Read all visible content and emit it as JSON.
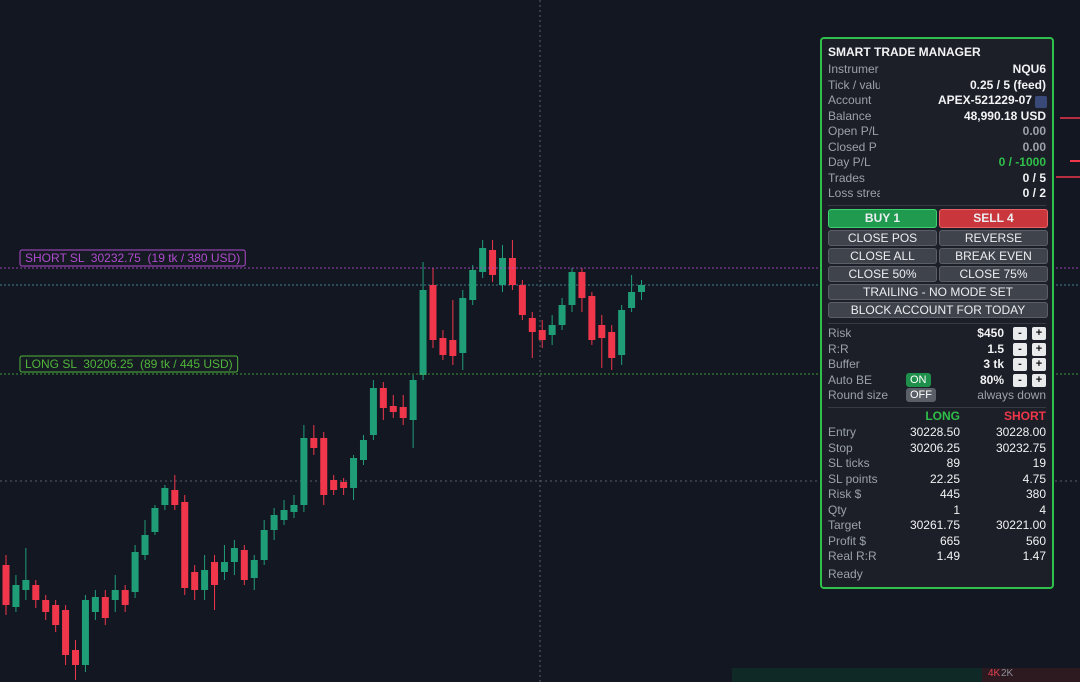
{
  "chart": {
    "type": "candlestick",
    "ylim": [
      30129.25,
      30299.75
    ],
    "up_color": "#1f9d77",
    "down_color": "#f0364b",
    "candles": [
      [
        30158.5,
        30161,
        30146,
        30148.5
      ],
      [
        30148,
        30156,
        30146.75,
        30153.5
      ],
      [
        30152.25,
        30162.75,
        30149.75,
        30154.75
      ],
      [
        30153.5,
        30154.75,
        30147.75,
        30149.75
      ],
      [
        30149.75,
        30151,
        30144.75,
        30146.75
      ],
      [
        30148.5,
        30149.75,
        30141.75,
        30143.5
      ],
      [
        30147.25,
        30148.5,
        30133.5,
        30136
      ],
      [
        30137.25,
        30139.75,
        30129.75,
        30133.5
      ],
      [
        30133.5,
        30151,
        30131.75,
        30149.75
      ],
      [
        30146.75,
        30152.25,
        30144.75,
        30150.5
      ],
      [
        30150.5,
        30152.25,
        30143.5,
        30145.25
      ],
      [
        30149.75,
        30156,
        30146.75,
        30152.25
      ],
      [
        30152.25,
        30153.5,
        30146.75,
        30148.5
      ],
      [
        30151.75,
        30163.5,
        30150.25,
        30161.75
      ],
      [
        30161,
        30169.75,
        30159.75,
        30166
      ],
      [
        30166.75,
        30173.5,
        30166,
        30172.75
      ],
      [
        30173.5,
        30178.5,
        30172.25,
        30177.75
      ],
      [
        30177.25,
        30181,
        30172.25,
        30173.5
      ],
      [
        30174.25,
        30176,
        30151,
        30152.75
      ],
      [
        30156.75,
        30158.5,
        30149.75,
        30152.25
      ],
      [
        30152.25,
        30161,
        30149.75,
        30157.25
      ],
      [
        30159.25,
        30161,
        30147.25,
        30153.5
      ],
      [
        30156.75,
        30163.5,
        30154.75,
        30159.25
      ],
      [
        30159.25,
        30164.75,
        30156,
        30162.75
      ],
      [
        30162.25,
        30163.5,
        30153.5,
        30154.75
      ],
      [
        30155.25,
        30161,
        30152.25,
        30159.75
      ],
      [
        30159.75,
        30169.75,
        30158.5,
        30167.25
      ],
      [
        30167.25,
        30172.75,
        30164.75,
        30171
      ],
      [
        30169.75,
        30174.75,
        30168.5,
        30172.25
      ],
      [
        30171.75,
        30176,
        30170.25,
        30173.5
      ],
      [
        30173.5,
        30193.5,
        30171.75,
        30190.25
      ],
      [
        30190.25,
        30193.5,
        30186,
        30187.75
      ],
      [
        30190.25,
        30191.75,
        30173.5,
        30176
      ],
      [
        30179.75,
        30181,
        30176,
        30177.25
      ],
      [
        30179.25,
        30180.25,
        30176,
        30177.75
      ],
      [
        30177.75,
        30186,
        30174.75,
        30185.25
      ],
      [
        30184.75,
        30191,
        30183.5,
        30189.75
      ],
      [
        30191,
        30204.75,
        30189.75,
        30202.75
      ],
      [
        30202.75,
        30204.25,
        30194.75,
        30197.75
      ],
      [
        30198.25,
        30201,
        30195.25,
        30196.75
      ],
      [
        30198,
        30201,
        30193.5,
        30195.25
      ],
      [
        30194.75,
        30206,
        30187.75,
        30204.75
      ],
      [
        30206,
        30234.25,
        30204.75,
        30227.25
      ],
      [
        30228.5,
        30232.75,
        30212.75,
        30214.75
      ],
      [
        30215.25,
        30217.25,
        30209.75,
        30211
      ],
      [
        30214.75,
        30224.75,
        30208.5,
        30210.75
      ],
      [
        30211.5,
        30227.25,
        30207.25,
        30225.25
      ],
      [
        30224.75,
        30233.5,
        30223.5,
        30232.25
      ],
      [
        30231.75,
        30239.75,
        30230.25,
        30237.75
      ],
      [
        30237.25,
        30239.75,
        30229.25,
        30231
      ],
      [
        30228.5,
        30238.5,
        30226.75,
        30235.25
      ],
      [
        30235.25,
        30239.75,
        30227.25,
        30228.5
      ],
      [
        30228.5,
        30229.75,
        30219.75,
        30221
      ],
      [
        30220.25,
        30221.75,
        30210.25,
        30216.75
      ],
      [
        30217.25,
        30219.75,
        30212.75,
        30214.75
      ],
      [
        30216,
        30221,
        30213.5,
        30218.5
      ],
      [
        30218.5,
        30225.25,
        30217.25,
        30223.5
      ],
      [
        30223.5,
        30232.75,
        30221.75,
        30231.75
      ],
      [
        30231.75,
        30232.75,
        30221.75,
        30225.25
      ],
      [
        30225.75,
        30226.75,
        30213.5,
        30214.75
      ],
      [
        30218.5,
        30221,
        30207.75,
        30215.25
      ],
      [
        30216.75,
        30218.5,
        30207.25,
        30210.25
      ],
      [
        30211,
        30223.5,
        30208.5,
        30222.25
      ],
      [
        30222.75,
        30231,
        30221.75,
        30226.75
      ],
      [
        30226.75,
        30229.75,
        30224.75,
        30228.5
      ]
    ],
    "sl_lines": [
      {
        "label": "SHORT SL  30232.75  (19 tk / 380 USD)",
        "price": 30232.75,
        "color": "#b04ccf"
      },
      {
        "label": "LONG SL  30206.25  (89 tk / 445 USD)",
        "price": 30206.25,
        "color": "#4fb53a"
      }
    ],
    "volume_label": [
      "4K",
      "2K"
    ]
  },
  "panel": {
    "title": "SMART TRADE MANAGER",
    "info": [
      [
        "Instrumer",
        "NQU6"
      ],
      [
        "Tick / valu",
        "0.25 / 5 (feed)"
      ],
      [
        "Account",
        "APEX-521229-07"
      ],
      [
        "Balance",
        "48,990.18 USD"
      ],
      [
        "Open P/L",
        "0.00"
      ],
      [
        "Closed P",
        "0.00"
      ],
      [
        "Day P/L",
        "0 / -1000"
      ],
      [
        "Trades",
        "0 / 5"
      ],
      [
        "Loss strea",
        "0 / 2"
      ]
    ],
    "buy": "BUY  1",
    "sell": "SELL  4",
    "buttons": [
      [
        "CLOSE POS",
        "REVERSE"
      ],
      [
        "CLOSE ALL",
        "BREAK EVEN"
      ],
      [
        "CLOSE 50%",
        "CLOSE 75%"
      ]
    ],
    "wide_buttons": [
      "TRAILING - NO MODE SET",
      "BLOCK ACCOUNT FOR TODAY"
    ],
    "settings": [
      [
        "Risk",
        "$450"
      ],
      [
        "R:R",
        "1.5"
      ],
      [
        "Buffer",
        "3 tk"
      ],
      [
        "Auto BE",
        "80%"
      ]
    ],
    "minus": "-",
    "plus": "+",
    "auto_be_toggle": "ON",
    "round_size": [
      "Round size",
      "OFF",
      "always down"
    ],
    "columns": [
      "LONG",
      "SHORT"
    ],
    "rows": [
      [
        "Entry",
        "30228.50",
        "30228.00"
      ],
      [
        "Stop",
        "30206.25",
        "30232.75"
      ],
      [
        "SL ticks",
        "89",
        "19"
      ],
      [
        "SL points",
        "22.25",
        "4.75"
      ],
      [
        "Risk $",
        "445",
        "380"
      ],
      [
        "Qty",
        "1",
        "4"
      ],
      [
        "Target",
        "30261.75",
        "30221.00"
      ],
      [
        "Profit $",
        "665",
        "560"
      ],
      [
        "Real R:R",
        "1.49",
        "1.47"
      ]
    ],
    "status": "Ready"
  }
}
